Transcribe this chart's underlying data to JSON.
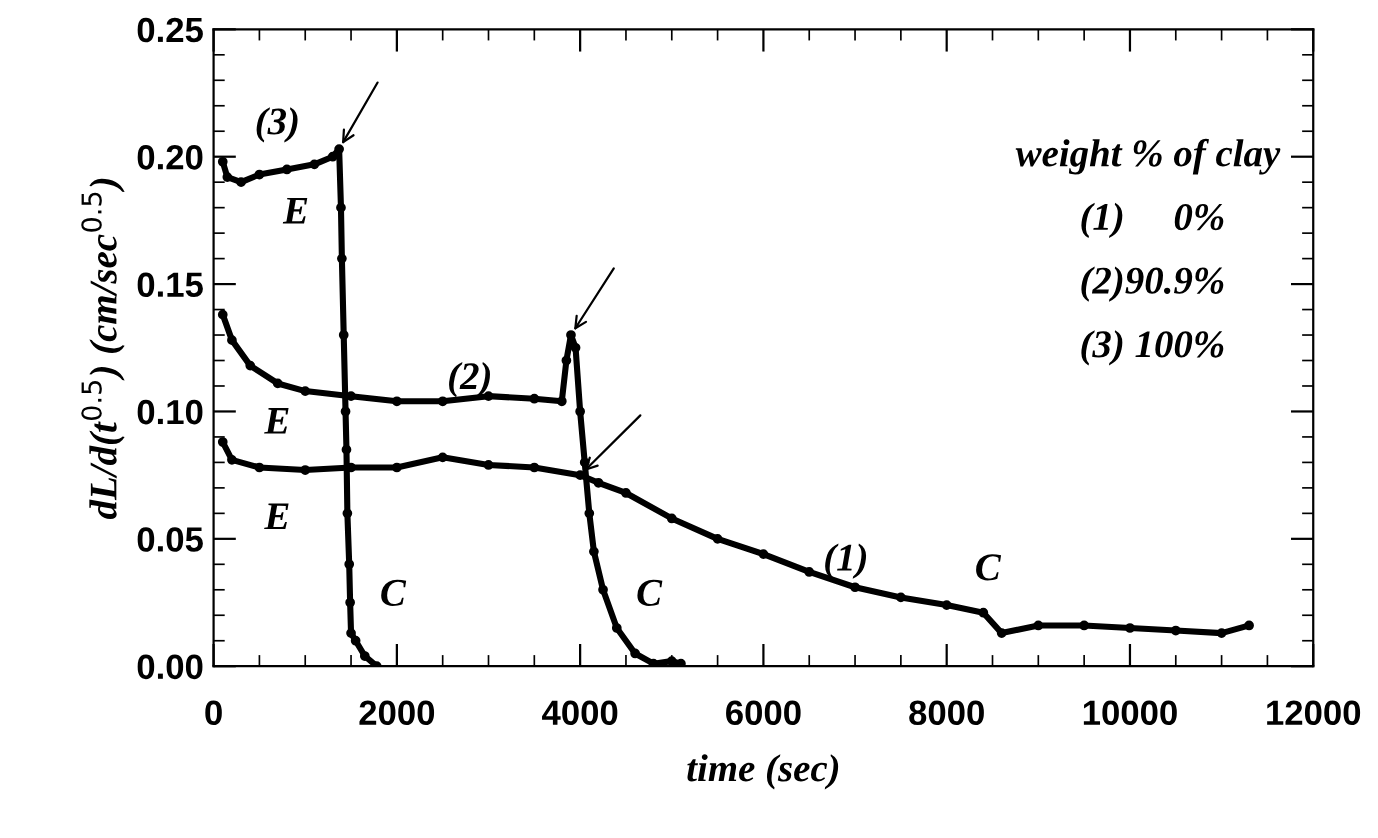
{
  "chart_data": {
    "type": "line",
    "xlabel": "time (sec)",
    "ylabel": "dL/d(t$^{0.5}$) (cm/sec$^{0.5}$)",
    "xlim": [
      0,
      12000
    ],
    "xticks": [
      0,
      2000,
      4000,
      6000,
      8000,
      10000,
      12000
    ],
    "ylim": [
      0,
      0.25
    ],
    "yticks": [
      {
        "value": 0,
        "label": "0.00"
      },
      {
        "value": 0.05,
        "label": "0.05"
      },
      {
        "value": 0.1,
        "label": "0.10"
      },
      {
        "value": 0.15,
        "label": "0.15"
      },
      {
        "value": 0.2,
        "label": "0.20"
      },
      {
        "value": 0.25,
        "label": "0.25"
      }
    ],
    "grid": false,
    "legend": false,
    "marker": "circle",
    "line_style": "solid",
    "series": [
      {
        "color": "#000000",
        "x": [
          100,
          200,
          500,
          1000,
          1500,
          2000,
          2500,
          3000,
          3500,
          4000,
          4200,
          4500,
          5000,
          5500,
          6000,
          6500,
          7000,
          7500,
          8000,
          8400,
          8600,
          9000,
          9500,
          10000,
          10500,
          11000,
          11300
        ],
        "values": [
          0.088,
          0.081,
          0.078,
          0.077,
          0.078,
          0.078,
          0.082,
          0.079,
          0.078,
          0.075,
          0.072,
          0.068,
          0.058,
          0.05,
          0.044,
          0.037,
          0.031,
          0.027,
          0.024,
          0.021,
          0.013,
          0.016,
          0.016,
          0.015,
          0.014,
          0.013,
          0.016
        ]
      },
      {
        "color": "#000000",
        "x": [
          100,
          200,
          400,
          700,
          1000,
          1500,
          2000,
          2500,
          3000,
          3500,
          3800,
          3850,
          3900,
          3950,
          4000,
          4050,
          4100,
          4150,
          4250,
          4400,
          4600,
          4800,
          5000,
          5100
        ],
        "values": [
          0.138,
          0.128,
          0.118,
          0.111,
          0.108,
          0.106,
          0.104,
          0.104,
          0.106,
          0.105,
          0.104,
          0.12,
          0.13,
          0.125,
          0.1,
          0.08,
          0.06,
          0.045,
          0.03,
          0.015,
          0.005,
          0.001,
          0.002,
          0.001
        ]
      },
      {
        "color": "#000000",
        "x": [
          100,
          150,
          300,
          500,
          800,
          1100,
          1300,
          1370,
          1390,
          1400,
          1420,
          1440,
          1450,
          1460,
          1480,
          1490,
          1500,
          1550,
          1650,
          1780
        ],
        "values": [
          0.198,
          0.192,
          0.19,
          0.193,
          0.195,
          0.197,
          0.2,
          0.203,
          0.18,
          0.16,
          0.13,
          0.1,
          0.085,
          0.06,
          0.04,
          0.025,
          0.013,
          0.01,
          0.004,
          0.0
        ]
      }
    ],
    "annotations": [
      "(3)",
      "E",
      "(2)",
      "E",
      "E",
      "C",
      "C",
      "(1)",
      "C",
      "weight % of clay",
      "(1)     0%",
      "(2)90.9%",
      "(3) 100%"
    ]
  }
}
